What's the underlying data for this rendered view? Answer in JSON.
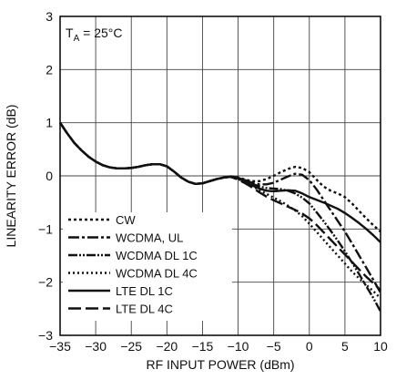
{
  "chart_data": {
    "type": "line",
    "xlabel": "RF INPUT POWER (dBm)",
    "ylabel": "LINEARITY ERROR (dB)",
    "xlim": [
      -35,
      10
    ],
    "ylim": [
      -3,
      3
    ],
    "xticks": [
      -35,
      -30,
      -25,
      -20,
      -15,
      -10,
      -5,
      0,
      5,
      10
    ],
    "yticks": [
      -3,
      -2,
      -1,
      0,
      1,
      2,
      3
    ],
    "xtick_labels": [
      "−35",
      "−30",
      "−25",
      "−20",
      "−15",
      "−10",
      "−5",
      "0",
      "5",
      "10"
    ],
    "ytick_labels": [
      "−3",
      "−2",
      "−1",
      "0",
      "1",
      "2",
      "3"
    ],
    "grid": true,
    "annotation": {
      "prefix": "T",
      "subscript": "A",
      "suffix": " = 25°C"
    },
    "legend_position": "bottom-left",
    "series": [
      {
        "name": "CW",
        "dash": "3,3",
        "points": [
          [
            -35,
            1.0
          ],
          [
            -34,
            0.8
          ],
          [
            -33,
            0.62
          ],
          [
            -32,
            0.48
          ],
          [
            -31,
            0.36
          ],
          [
            -30,
            0.27
          ],
          [
            -29,
            0.2
          ],
          [
            -28,
            0.16
          ],
          [
            -27,
            0.14
          ],
          [
            -26,
            0.14
          ],
          [
            -25,
            0.15
          ],
          [
            -24,
            0.17
          ],
          [
            -23,
            0.2
          ],
          [
            -22,
            0.22
          ],
          [
            -21,
            0.22
          ],
          [
            -20,
            0.18
          ],
          [
            -19,
            0.08
          ],
          [
            -18,
            -0.03
          ],
          [
            -17,
            -0.11
          ],
          [
            -16,
            -0.15
          ],
          [
            -15,
            -0.14
          ],
          [
            -14,
            -0.1
          ],
          [
            -13,
            -0.06
          ],
          [
            -12,
            -0.03
          ],
          [
            -11,
            -0.01
          ],
          [
            -10,
            -0.03
          ],
          [
            -9,
            -0.07
          ],
          [
            -8,
            -0.1
          ],
          [
            -7,
            -0.1
          ],
          [
            -6,
            -0.06
          ],
          [
            -5,
            0.0
          ],
          [
            -4,
            0.07
          ],
          [
            -3,
            0.13
          ],
          [
            -2,
            0.17
          ],
          [
            -1,
            0.15
          ],
          [
            0,
            0.07
          ],
          [
            1,
            -0.07
          ],
          [
            2,
            -0.2
          ],
          [
            3,
            -0.28
          ],
          [
            4,
            -0.33
          ],
          [
            5,
            -0.4
          ],
          [
            6,
            -0.52
          ],
          [
            7,
            -0.66
          ],
          [
            8,
            -0.8
          ],
          [
            9,
            -0.93
          ],
          [
            10,
            -1.05
          ]
        ]
      },
      {
        "name": "WCDMA, UL",
        "dash": "12,3,3,3",
        "points": [
          [
            -35,
            1.0
          ],
          [
            -34,
            0.8
          ],
          [
            -33,
            0.62
          ],
          [
            -32,
            0.48
          ],
          [
            -31,
            0.36
          ],
          [
            -30,
            0.27
          ],
          [
            -29,
            0.2
          ],
          [
            -28,
            0.16
          ],
          [
            -27,
            0.14
          ],
          [
            -26,
            0.14
          ],
          [
            -25,
            0.15
          ],
          [
            -24,
            0.17
          ],
          [
            -23,
            0.2
          ],
          [
            -22,
            0.22
          ],
          [
            -21,
            0.22
          ],
          [
            -20,
            0.18
          ],
          [
            -19,
            0.08
          ],
          [
            -18,
            -0.03
          ],
          [
            -17,
            -0.11
          ],
          [
            -16,
            -0.15
          ],
          [
            -15,
            -0.14
          ],
          [
            -14,
            -0.1
          ],
          [
            -13,
            -0.06
          ],
          [
            -12,
            -0.03
          ],
          [
            -11,
            -0.01
          ],
          [
            -10,
            -0.04
          ],
          [
            -9,
            -0.08
          ],
          [
            -8,
            -0.13
          ],
          [
            -7,
            -0.16
          ],
          [
            -6,
            -0.16
          ],
          [
            -5,
            -0.13
          ],
          [
            -4,
            -0.07
          ],
          [
            -3,
            -0.01
          ],
          [
            -2,
            0.04
          ],
          [
            -1,
            0.02
          ],
          [
            0,
            -0.08
          ],
          [
            1,
            -0.25
          ],
          [
            2,
            -0.45
          ],
          [
            3,
            -0.65
          ],
          [
            4,
            -0.85
          ],
          [
            5,
            -1.05
          ],
          [
            6,
            -1.27
          ],
          [
            7,
            -1.5
          ],
          [
            8,
            -1.73
          ],
          [
            9,
            -1.96
          ],
          [
            10,
            -2.2
          ]
        ]
      },
      {
        "name": "WCDMA DL 1C",
        "dash": "10,2,2,2,2,2",
        "points": [
          [
            -35,
            1.0
          ],
          [
            -34,
            0.8
          ],
          [
            -33,
            0.62
          ],
          [
            -32,
            0.48
          ],
          [
            -31,
            0.36
          ],
          [
            -30,
            0.27
          ],
          [
            -29,
            0.2
          ],
          [
            -28,
            0.16
          ],
          [
            -27,
            0.14
          ],
          [
            -26,
            0.14
          ],
          [
            -25,
            0.15
          ],
          [
            -24,
            0.17
          ],
          [
            -23,
            0.2
          ],
          [
            -22,
            0.22
          ],
          [
            -21,
            0.22
          ],
          [
            -20,
            0.18
          ],
          [
            -19,
            0.08
          ],
          [
            -18,
            -0.03
          ],
          [
            -17,
            -0.11
          ],
          [
            -16,
            -0.15
          ],
          [
            -15,
            -0.14
          ],
          [
            -14,
            -0.1
          ],
          [
            -13,
            -0.06
          ],
          [
            -12,
            -0.03
          ],
          [
            -11,
            -0.01
          ],
          [
            -10,
            -0.04
          ],
          [
            -9,
            -0.09
          ],
          [
            -8,
            -0.15
          ],
          [
            -7,
            -0.2
          ],
          [
            -6,
            -0.23
          ],
          [
            -5,
            -0.24
          ],
          [
            -4,
            -0.25
          ],
          [
            -3,
            -0.28
          ],
          [
            -2,
            -0.33
          ],
          [
            -1,
            -0.41
          ],
          [
            0,
            -0.52
          ],
          [
            1,
            -0.68
          ],
          [
            2,
            -0.85
          ],
          [
            3,
            -1.03
          ],
          [
            4,
            -1.22
          ],
          [
            5,
            -1.42
          ],
          [
            6,
            -1.63
          ],
          [
            7,
            -1.85
          ],
          [
            8,
            -2.08
          ],
          [
            9,
            -2.3
          ],
          [
            10,
            -2.55
          ]
        ]
      },
      {
        "name": "WCDMA DL 4C",
        "dash": "2,3",
        "points": [
          [
            -35,
            1.0
          ],
          [
            -34,
            0.8
          ],
          [
            -33,
            0.62
          ],
          [
            -32,
            0.48
          ],
          [
            -31,
            0.36
          ],
          [
            -30,
            0.27
          ],
          [
            -29,
            0.2
          ],
          [
            -28,
            0.16
          ],
          [
            -27,
            0.14
          ],
          [
            -26,
            0.14
          ],
          [
            -25,
            0.15
          ],
          [
            -24,
            0.17
          ],
          [
            -23,
            0.2
          ],
          [
            -22,
            0.22
          ],
          [
            -21,
            0.22
          ],
          [
            -20,
            0.18
          ],
          [
            -19,
            0.08
          ],
          [
            -18,
            -0.03
          ],
          [
            -17,
            -0.11
          ],
          [
            -16,
            -0.15
          ],
          [
            -15,
            -0.14
          ],
          [
            -14,
            -0.1
          ],
          [
            -13,
            -0.06
          ],
          [
            -12,
            -0.03
          ],
          [
            -11,
            -0.02
          ],
          [
            -10,
            -0.06
          ],
          [
            -9,
            -0.12
          ],
          [
            -8,
            -0.19
          ],
          [
            -7,
            -0.27
          ],
          [
            -6,
            -0.34
          ],
          [
            -5,
            -0.41
          ],
          [
            -4,
            -0.48
          ],
          [
            -3,
            -0.56
          ],
          [
            -2,
            -0.65
          ],
          [
            -1,
            -0.76
          ],
          [
            0,
            -0.9
          ],
          [
            1,
            -1.05
          ],
          [
            2,
            -1.2
          ],
          [
            3,
            -1.35
          ],
          [
            4,
            -1.5
          ],
          [
            5,
            -1.65
          ],
          [
            6,
            -1.8
          ],
          [
            7,
            -1.93
          ],
          [
            8,
            -2.05
          ],
          [
            9,
            -2.17
          ],
          [
            10,
            -2.3
          ]
        ]
      },
      {
        "name": "LTE DL 1C",
        "dash": "",
        "points": [
          [
            -35,
            1.0
          ],
          [
            -34,
            0.8
          ],
          [
            -33,
            0.62
          ],
          [
            -32,
            0.48
          ],
          [
            -31,
            0.36
          ],
          [
            -30,
            0.27
          ],
          [
            -29,
            0.2
          ],
          [
            -28,
            0.16
          ],
          [
            -27,
            0.14
          ],
          [
            -26,
            0.14
          ],
          [
            -25,
            0.15
          ],
          [
            -24,
            0.17
          ],
          [
            -23,
            0.2
          ],
          [
            -22,
            0.22
          ],
          [
            -21,
            0.22
          ],
          [
            -20,
            0.18
          ],
          [
            -19,
            0.08
          ],
          [
            -18,
            -0.03
          ],
          [
            -17,
            -0.11
          ],
          [
            -16,
            -0.15
          ],
          [
            -15,
            -0.14
          ],
          [
            -14,
            -0.1
          ],
          [
            -13,
            -0.06
          ],
          [
            -12,
            -0.03
          ],
          [
            -11,
            -0.01
          ],
          [
            -10,
            -0.05
          ],
          [
            -9,
            -0.11
          ],
          [
            -8,
            -0.18
          ],
          [
            -7,
            -0.24
          ],
          [
            -6,
            -0.28
          ],
          [
            -5,
            -0.29
          ],
          [
            -4,
            -0.28
          ],
          [
            -3,
            -0.27
          ],
          [
            -2,
            -0.28
          ],
          [
            -1,
            -0.33
          ],
          [
            0,
            -0.4
          ],
          [
            1,
            -0.45
          ],
          [
            2,
            -0.5
          ],
          [
            3,
            -0.56
          ],
          [
            4,
            -0.62
          ],
          [
            5,
            -0.7
          ],
          [
            6,
            -0.79
          ],
          [
            7,
            -0.89
          ],
          [
            8,
            -1.0
          ],
          [
            9,
            -1.12
          ],
          [
            10,
            -1.25
          ]
        ]
      },
      {
        "name": "LTE DL 4C",
        "dash": "14,5",
        "points": [
          [
            -35,
            1.0
          ],
          [
            -34,
            0.8
          ],
          [
            -33,
            0.62
          ],
          [
            -32,
            0.48
          ],
          [
            -31,
            0.36
          ],
          [
            -30,
            0.27
          ],
          [
            -29,
            0.2
          ],
          [
            -28,
            0.16
          ],
          [
            -27,
            0.14
          ],
          [
            -26,
            0.14
          ],
          [
            -25,
            0.15
          ],
          [
            -24,
            0.17
          ],
          [
            -23,
            0.2
          ],
          [
            -22,
            0.22
          ],
          [
            -21,
            0.22
          ],
          [
            -20,
            0.18
          ],
          [
            -19,
            0.08
          ],
          [
            -18,
            -0.03
          ],
          [
            -17,
            -0.11
          ],
          [
            -16,
            -0.15
          ],
          [
            -15,
            -0.14
          ],
          [
            -14,
            -0.1
          ],
          [
            -13,
            -0.06
          ],
          [
            -12,
            -0.03
          ],
          [
            -11,
            -0.02
          ],
          [
            -10,
            -0.07
          ],
          [
            -9,
            -0.14
          ],
          [
            -8,
            -0.22
          ],
          [
            -7,
            -0.31
          ],
          [
            -6,
            -0.39
          ],
          [
            -5,
            -0.46
          ],
          [
            -4,
            -0.52
          ],
          [
            -3,
            -0.58
          ],
          [
            -2,
            -0.64
          ],
          [
            -1,
            -0.71
          ],
          [
            0,
            -0.8
          ],
          [
            1,
            -0.92
          ],
          [
            2,
            -1.06
          ],
          [
            3,
            -1.2
          ],
          [
            4,
            -1.34
          ],
          [
            5,
            -1.48
          ],
          [
            6,
            -1.62
          ],
          [
            7,
            -1.76
          ],
          [
            8,
            -1.9
          ],
          [
            9,
            -2.02
          ],
          [
            10,
            -2.15
          ]
        ]
      }
    ]
  }
}
